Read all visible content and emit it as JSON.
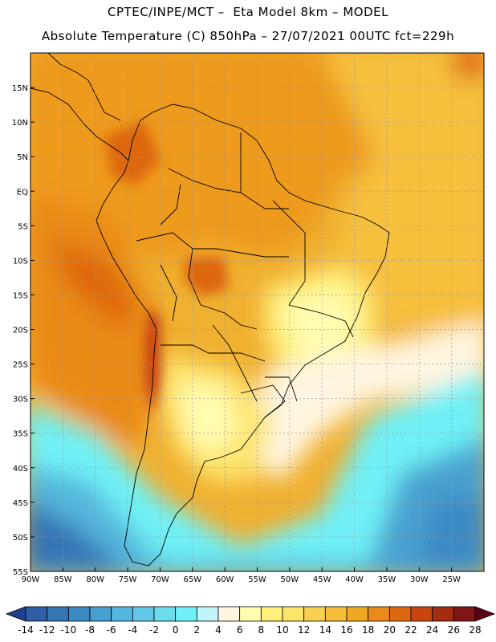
{
  "header": {
    "line1": "CPTEC/INPE/MCT –  Eta Model 8km – MODEL",
    "line2": "Absolute Temperature (C) 850hPa – 27/07/2021 00UTC fct=229h"
  },
  "map": {
    "lon_range": [
      -90,
      -20
    ],
    "lat_range": [
      -55,
      20
    ],
    "lat_ticks": [
      "15N",
      "10N",
      "5N",
      "EQ",
      "5S",
      "10S",
      "15S",
      "20S",
      "25S",
      "30S",
      "35S",
      "40S",
      "45S",
      "50S",
      "55S"
    ],
    "lon_ticks": [
      "90W",
      "85W",
      "80W",
      "75W",
      "70W",
      "65W",
      "60W",
      "55W",
      "50W",
      "45W",
      "40W",
      "35W",
      "30W",
      "25W"
    ],
    "grid": true
  },
  "colorbar": {
    "labels": [
      "-14",
      "-12",
      "-10",
      "-8",
      "-6",
      "-4",
      "-2",
      "0",
      "2",
      "4",
      "6",
      "8",
      "10",
      "12",
      "14",
      "16",
      "18",
      "20",
      "22",
      "24",
      "26",
      "28"
    ],
    "colors": [
      "#1f3f8f",
      "#2e5fa6",
      "#3574b5",
      "#3c8ac4",
      "#48a0d0",
      "#54b6dc",
      "#60c8e6",
      "#6adcee",
      "#6ff0f6",
      "#bff5fb",
      "#fff5e0",
      "#fffcb0",
      "#fff07a",
      "#fde46a",
      "#f8d050",
      "#f5bd3a",
      "#f0a823",
      "#ea8a18",
      "#de6810",
      "#c94510",
      "#a42d10",
      "#7f1515",
      "#5c0015"
    ]
  }
}
